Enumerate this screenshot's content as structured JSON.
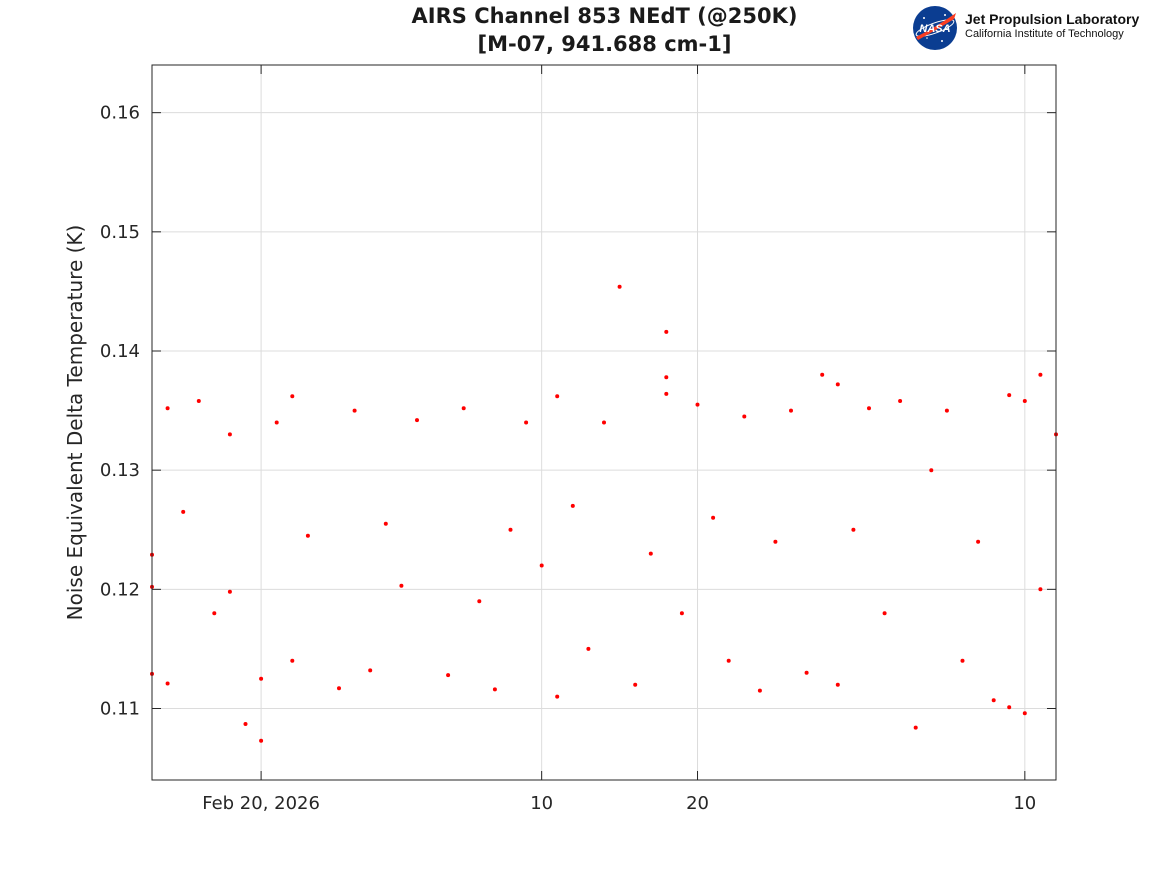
{
  "colors": {
    "marker": "#ff0000",
    "grid": "#dcdcdc",
    "axis": "#262626",
    "background": "#ffffff"
  },
  "logo": {
    "icon": "nasa-meatball-icon",
    "emblem_text": "NASA",
    "name": "Jet Propulsion Laboratory",
    "subtitle": "California Institute of Technology"
  },
  "chart_data": {
    "type": "scatter",
    "title": "AIRS Channel 853 NEdT (@250K)",
    "subtitle": "[M-07, 941.688 cm-1]",
    "xlabel": "",
    "ylabel": "Noise Equivalent Delta Temperature (K)",
    "x_scale": "date",
    "xlim": [
      "2026-02-13",
      "2026-04-12"
    ],
    "ylim": [
      0.104,
      0.164
    ],
    "grid": true,
    "legend": "none",
    "x_ticks": [
      {
        "date": "2026-02-20",
        "label": "Feb 20, 2026"
      },
      {
        "date": "2026-03-10",
        "label": "10"
      },
      {
        "date": "2026-03-20",
        "label": "20"
      },
      {
        "date": "2026-04-10",
        "label": "10"
      }
    ],
    "y_ticks": [
      0.11,
      0.12,
      0.13,
      0.14,
      0.15,
      0.16
    ],
    "y_tick_labels": [
      "0.11",
      "0.12",
      "0.13",
      "0.14",
      "0.15",
      "0.16"
    ],
    "series": [
      {
        "marker": "dot",
        "color": "#ff0000",
        "points": [
          [
            "2026-02-13",
            0.1229
          ],
          [
            "2026-02-13",
            0.1129
          ],
          [
            "2026-02-13",
            0.1202
          ],
          [
            "2026-02-14",
            0.1352
          ],
          [
            "2026-02-14",
            0.1121
          ],
          [
            "2026-02-15",
            0.1265
          ],
          [
            "2026-02-16",
            0.1358
          ],
          [
            "2026-02-17",
            0.118
          ],
          [
            "2026-02-18",
            0.133
          ],
          [
            "2026-02-18",
            0.1198
          ],
          [
            "2026-02-19",
            0.1087
          ],
          [
            "2026-02-20",
            0.1073
          ],
          [
            "2026-02-20",
            0.1125
          ],
          [
            "2026-02-21",
            0.134
          ],
          [
            "2026-02-22",
            0.1362
          ],
          [
            "2026-02-22",
            0.114
          ],
          [
            "2026-02-23",
            0.1245
          ],
          [
            "2026-02-25",
            0.1117
          ],
          [
            "2026-02-26",
            0.135
          ],
          [
            "2026-02-27",
            0.1132
          ],
          [
            "2026-02-28",
            0.1255
          ],
          [
            "2026-03-01",
            0.1203
          ],
          [
            "2026-03-02",
            0.1342
          ],
          [
            "2026-03-04",
            0.1128
          ],
          [
            "2026-03-05",
            0.1352
          ],
          [
            "2026-03-06",
            0.119
          ],
          [
            "2026-03-07",
            0.1116
          ],
          [
            "2026-03-08",
            0.125
          ],
          [
            "2026-03-09",
            0.134
          ],
          [
            "2026-03-10",
            0.122
          ],
          [
            "2026-03-11",
            0.1362
          ],
          [
            "2026-03-11",
            0.111
          ],
          [
            "2026-03-12",
            0.127
          ],
          [
            "2026-03-13",
            0.115
          ],
          [
            "2026-03-14",
            0.134
          ],
          [
            "2026-03-15",
            0.1454
          ],
          [
            "2026-03-16",
            0.112
          ],
          [
            "2026-03-17",
            0.123
          ],
          [
            "2026-03-18",
            0.1416
          ],
          [
            "2026-03-18",
            0.1378
          ],
          [
            "2026-03-18",
            0.1364
          ],
          [
            "2026-03-19",
            0.118
          ],
          [
            "2026-03-20",
            0.1355
          ],
          [
            "2026-03-21",
            0.126
          ],
          [
            "2026-03-22",
            0.114
          ],
          [
            "2026-03-23",
            0.1345
          ],
          [
            "2026-03-24",
            0.1115
          ],
          [
            "2026-03-25",
            0.124
          ],
          [
            "2026-03-26",
            0.135
          ],
          [
            "2026-03-27",
            0.113
          ],
          [
            "2026-03-28",
            0.138
          ],
          [
            "2026-03-29",
            0.1372
          ],
          [
            "2026-03-29",
            0.112
          ],
          [
            "2026-03-30",
            0.125
          ],
          [
            "2026-03-31",
            0.1352
          ],
          [
            "2026-04-01",
            0.118
          ],
          [
            "2026-04-02",
            0.1358
          ],
          [
            "2026-04-03",
            0.1084
          ],
          [
            "2026-04-04",
            0.13
          ],
          [
            "2026-04-05",
            0.135
          ],
          [
            "2026-04-06",
            0.114
          ],
          [
            "2026-04-07",
            0.124
          ],
          [
            "2026-04-08",
            0.1107
          ],
          [
            "2026-04-09",
            0.1101
          ],
          [
            "2026-04-09",
            0.1363
          ],
          [
            "2026-04-10",
            0.1096
          ],
          [
            "2026-04-10",
            0.1358
          ],
          [
            "2026-04-11",
            0.138
          ],
          [
            "2026-04-11",
            0.12
          ],
          [
            "2026-04-12",
            0.133
          ]
        ]
      }
    ]
  }
}
